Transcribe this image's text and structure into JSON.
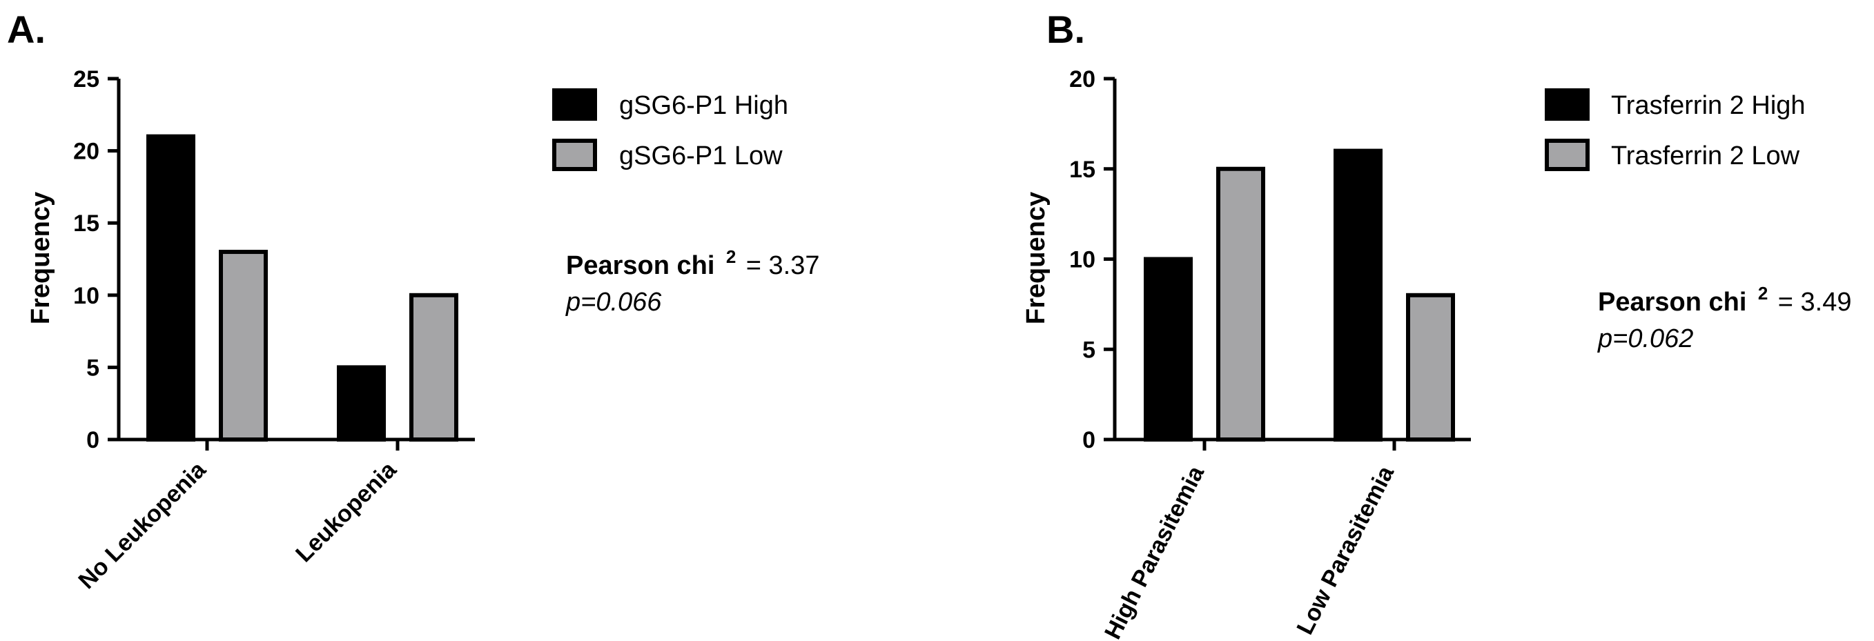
{
  "chart_data": [
    {
      "type": "bar",
      "panel_label": "A.",
      "categories": [
        "No Leukopenia",
        "Leukopenia"
      ],
      "series": [
        {
          "name": "gSG6-P1 High",
          "color": "#000000",
          "values": [
            21,
            5
          ]
        },
        {
          "name": "gSG6-P1 Low",
          "color": "#a5a5a7",
          "values": [
            13,
            10
          ]
        }
      ],
      "ylabel": "Frequency",
      "xlabel": "",
      "ylim": [
        0,
        25
      ],
      "yticks": [
        "0",
        "5",
        "10",
        "15",
        "20",
        "25"
      ],
      "legend_position": "right",
      "stat": {
        "label": "Pearson chi",
        "superscript": "2",
        "value_text": "= 3.37",
        "p_text": "p=0.066"
      }
    },
    {
      "type": "bar",
      "panel_label": "B.",
      "categories": [
        "High Parasitemia",
        "Low Parasitemia"
      ],
      "series": [
        {
          "name": "Trasferrin 2 High",
          "color": "#000000",
          "values": [
            10,
            16
          ]
        },
        {
          "name": "Trasferrin 2 Low",
          "color": "#a5a5a7",
          "values": [
            15,
            8
          ]
        }
      ],
      "ylabel": "Frequency",
      "xlabel": "",
      "ylim": [
        0,
        20
      ],
      "yticks": [
        "0",
        "5",
        "10",
        "15",
        "20"
      ],
      "legend_position": "right",
      "stat": {
        "label": "Pearson chi",
        "superscript": "2",
        "value_text": "= 3.49",
        "p_text": "p=0.062"
      }
    }
  ]
}
